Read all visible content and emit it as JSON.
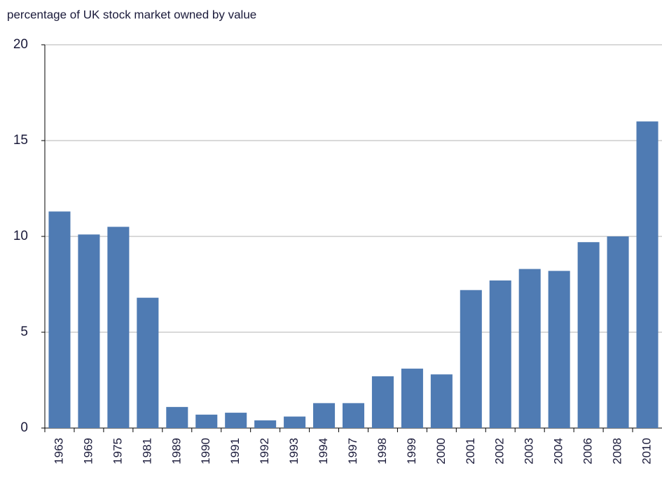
{
  "chart_data": {
    "type": "bar",
    "title": "percentage of UK stock market  owned by value",
    "categories": [
      "1963",
      "1969",
      "1975",
      "1981",
      "1989",
      "1990",
      "1991",
      "1992",
      "1993",
      "1994",
      "1997",
      "1998",
      "1999",
      "2000",
      "2001",
      "2002",
      "2003",
      "2004",
      "2006",
      "2008",
      "2010"
    ],
    "values": [
      11.3,
      10.1,
      10.5,
      6.8,
      1.1,
      0.7,
      0.8,
      0.4,
      0.6,
      1.3,
      1.3,
      2.7,
      3.1,
      2.8,
      7.2,
      7.7,
      8.3,
      8.2,
      9.7,
      10.0,
      16.0
    ],
    "color": "#4f7bb3",
    "ylim": [
      0,
      20
    ],
    "yticks": [
      0,
      5,
      10,
      15,
      20
    ],
    "grid": true
  }
}
